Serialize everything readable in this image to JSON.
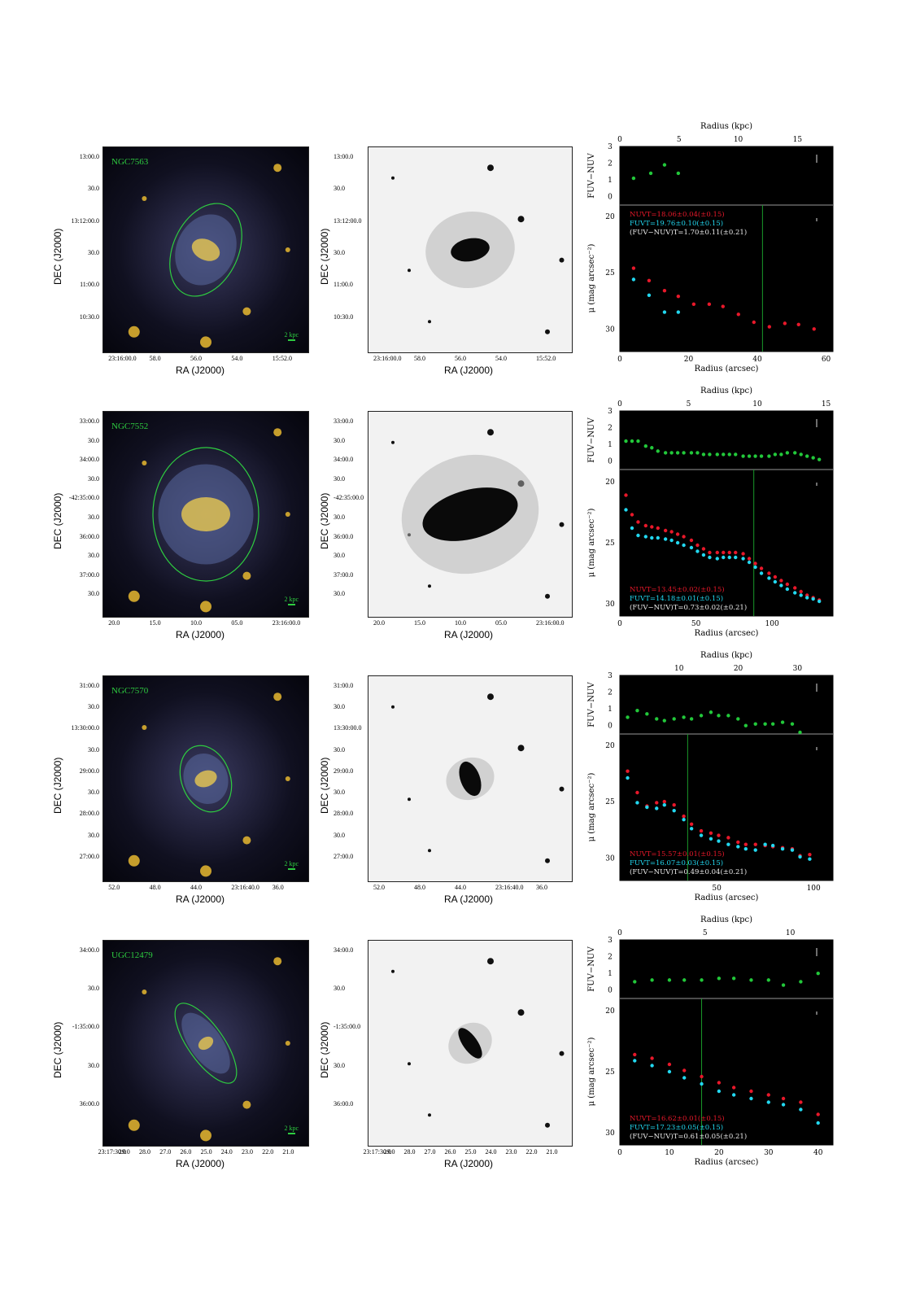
{
  "colors": {
    "nuv": "#e8182a",
    "fuv": "#22d8f0",
    "color": "#22c83a",
    "galname": "#2ecc40"
  },
  "labels": {
    "ra": "RA (J2000)",
    "dec": "DEC (J2000)",
    "radius_kpc": "Radius (kpc)",
    "radius_arcsec": "Radius (arcsec)",
    "fuvnuv": "FUV−NUV",
    "mu": "μ (mag arcsec⁻²)",
    "scale": "2 kpc"
  },
  "galaxies": [
    {
      "name": "NGC7563",
      "color_ra_ticks": [
        "23:16:00.0",
        "58.0",
        "56.0",
        "54.0",
        "15:52.0"
      ],
      "color_dec_ticks": [
        "13:00.0",
        "30.0",
        "13:12:00.0",
        "30.0",
        "11:00.0",
        "10:30.0"
      ],
      "gray_ra_ticks": [
        "23:16:00.0",
        "58.0",
        "56.0",
        "54.0",
        "15:52.0"
      ],
      "gray_dec_ticks": [
        "13:00.0",
        "30.0",
        "13:12:00.0",
        "30.0",
        "11:00.0",
        "10:30.0"
      ],
      "nuv_text": "NUVT=18.06±0.04(±0.15)",
      "fuv_text": "FUVT=19.76±0.10(±0.15)",
      "col_text": "(FUV−NUV)T=1.70±0.11(±0.21)",
      "chart_data": {
        "type": "scatter",
        "top_axis": {
          "label": "Radius (kpc)",
          "ticks": [
            "0",
            "5",
            "10",
            "15"
          ],
          "lim": [
            0,
            18
          ]
        },
        "bottom_axis": {
          "label": "Radius (arcsec)",
          "ticks": [
            "0",
            "20",
            "40",
            "60"
          ],
          "lim": [
            0,
            62
          ]
        },
        "color_axis": {
          "label": "FUV−NUV",
          "ticks": [
            "3",
            "2",
            "1",
            "0"
          ],
          "lim": [
            -0.5,
            3
          ]
        },
        "mu_axis": {
          "label": "μ (mag arcsec⁻²)",
          "ticks": [
            "20",
            "25",
            "30"
          ],
          "lim": [
            32,
            19
          ]
        },
        "series": [
          {
            "name": "FUV−NUV",
            "x": [
              4,
              9,
              13,
              17
            ],
            "y": [
              1.1,
              1.4,
              1.9,
              1.4
            ]
          },
          {
            "name": "NUV",
            "x": [
              4,
              8.5,
              13,
              17,
              21.5,
              26,
              30,
              34.5,
              39,
              43.5,
              48,
              52,
              56.5
            ],
            "y": [
              24.6,
              25.7,
              26.6,
              27.1,
              27.8,
              27.8,
              28.0,
              28.7,
              29.4,
              29.8,
              29.5,
              29.6,
              30.0
            ]
          },
          {
            "name": "FUV",
            "x": [
              4,
              8.5,
              13,
              17
            ],
            "y": [
              25.6,
              27.0,
              28.5,
              28.5
            ]
          }
        ],
        "vline": 41.5
      }
    },
    {
      "name": "NGC7552",
      "color_ra_ticks": [
        "20.0",
        "15.0",
        "10.0",
        "05.0",
        "23:16:00.0"
      ],
      "color_dec_ticks": [
        "33:00.0",
        "30.0",
        "34:00.0",
        "30.0",
        "-42:35:00.0",
        "30.0",
        "36:00.0",
        "30.0",
        "37:00.0",
        "30.0"
      ],
      "gray_ra_ticks": [
        "20.0",
        "15.0",
        "10.0",
        "05.0",
        "23:16:00.0"
      ],
      "gray_dec_ticks": [
        "33:00.0",
        "30.0",
        "34:00.0",
        "30.0",
        "-42:35:00.0",
        "30.0",
        "36:00.0",
        "30.0",
        "37:00.0",
        "30.0"
      ],
      "nuv_text": "NUVT=13.45±0.02(±0.15)",
      "fuv_text": "FUVT=14.18±0.01(±0.15)",
      "col_text": "(FUV−NUV)T=0.73±0.02(±0.21)",
      "chart_data": {
        "type": "scatter",
        "top_axis": {
          "label": "Radius (kpc)",
          "ticks": [
            "0",
            "5",
            "10",
            "15"
          ],
          "lim": [
            0,
            15.5
          ]
        },
        "bottom_axis": {
          "label": "Radius (arcsec)",
          "ticks": [
            "0",
            "50",
            "100"
          ],
          "lim": [
            0,
            140
          ]
        },
        "color_axis": {
          "label": "FUV−NUV",
          "ticks": [
            "3",
            "2",
            "1",
            "0"
          ],
          "lim": [
            -0.5,
            3
          ]
        },
        "mu_axis": {
          "label": "μ (mag arcsec⁻²)",
          "ticks": [
            "20",
            "25",
            "30"
          ],
          "lim": [
            31,
            19
          ]
        },
        "series": [
          {
            "name": "FUV−NUV",
            "x": [
              4,
              8,
              12,
              17,
              21,
              25,
              30,
              34,
              38,
              42,
              47,
              51,
              55,
              59,
              64,
              68,
              72,
              76,
              81,
              85,
              89,
              93,
              98,
              102,
              106,
              110,
              115,
              119,
              123,
              127,
              131
            ],
            "y": [
              1.2,
              1.2,
              1.2,
              0.9,
              0.8,
              0.6,
              0.5,
              0.5,
              0.5,
              0.5,
              0.5,
              0.5,
              0.4,
              0.4,
              0.4,
              0.4,
              0.4,
              0.4,
              0.3,
              0.3,
              0.3,
              0.3,
              0.3,
              0.4,
              0.4,
              0.5,
              0.5,
              0.4,
              0.3,
              0.2,
              0.1
            ]
          },
          {
            "name": "NUV",
            "x": [
              4,
              8,
              12,
              17,
              21,
              25,
              30,
              34,
              38,
              42,
              47,
              51,
              55,
              59,
              64,
              68,
              72,
              76,
              81,
              85,
              89,
              93,
              98,
              102,
              106,
              110,
              115,
              119,
              123,
              127,
              131
            ],
            "y": [
              21.1,
              22.7,
              23.3,
              23.6,
              23.7,
              23.8,
              24.0,
              24.1,
              24.3,
              24.5,
              24.8,
              25.2,
              25.5,
              25.8,
              25.8,
              25.8,
              25.8,
              25.8,
              25.9,
              26.3,
              26.7,
              27.1,
              27.5,
              27.8,
              28.1,
              28.4,
              28.7,
              29.0,
              29.3,
              29.5,
              29.7
            ]
          },
          {
            "name": "FUV",
            "x": [
              4,
              8,
              12,
              17,
              21,
              25,
              30,
              34,
              38,
              42,
              47,
              51,
              55,
              59,
              64,
              68,
              72,
              76,
              81,
              85,
              89,
              93,
              98,
              102,
              106,
              110,
              115,
              119,
              123,
              127,
              131
            ],
            "y": [
              22.3,
              23.8,
              24.4,
              24.5,
              24.6,
              24.6,
              24.7,
              24.8,
              25.0,
              25.2,
              25.4,
              25.7,
              26.0,
              26.2,
              26.3,
              26.2,
              26.2,
              26.2,
              26.3,
              26.6,
              27.0,
              27.5,
              27.9,
              28.2,
              28.5,
              28.8,
              29.1,
              29.3,
              29.5,
              29.6,
              29.8
            ]
          }
        ],
        "vline": 88
      }
    },
    {
      "name": "NGC7570",
      "color_ra_ticks": [
        "52.0",
        "48.0",
        "44.0",
        "23:16:40.0",
        "36.0"
      ],
      "color_dec_ticks": [
        "31:00.0",
        "30.0",
        "13:30:00.0",
        "30.0",
        "29:00.0",
        "30.0",
        "28:00.0",
        "30.0",
        "27:00.0"
      ],
      "gray_ra_ticks": [
        "52.0",
        "48.0",
        "44.0",
        "23:16:40.0",
        "36.0"
      ],
      "gray_dec_ticks": [
        "31:00.0",
        "30.0",
        "13:30:00.0",
        "30.0",
        "29:00.0",
        "30.0",
        "28:00.0",
        "30.0",
        "27:00.0"
      ],
      "nuv_text": "NUVT=15.57±0.01(±0.15)",
      "fuv_text": "FUVT=16.07±0.03(±0.15)",
      "col_text": "(FUV−NUV)T=0.49±0.04(±0.21)",
      "chart_data": {
        "type": "scatter",
        "top_axis": {
          "label": "Radius (kpc)",
          "ticks": [
            "10",
            "20",
            "30"
          ],
          "lim": [
            0,
            36
          ]
        },
        "bottom_axis": {
          "label": "Radius (arcsec)",
          "ticks": [
            "50",
            "100"
          ],
          "lim": [
            0,
            110
          ]
        },
        "color_axis": {
          "label": "FUV−NUV",
          "ticks": [
            "3",
            "2",
            "1",
            "0"
          ],
          "lim": [
            -0.5,
            3
          ]
        },
        "mu_axis": {
          "label": "μ (mag arcsec⁻²)",
          "ticks": [
            "20",
            "25",
            "30"
          ],
          "lim": [
            32,
            19
          ]
        },
        "series": [
          {
            "name": "FUV−NUV",
            "x": [
              4,
              9,
              14,
              19,
              23,
              28,
              33,
              37,
              42,
              47,
              51,
              56,
              61,
              65,
              70,
              75,
              79,
              84,
              89,
              93
            ],
            "y": [
              0.5,
              0.9,
              0.7,
              0.4,
              0.3,
              0.4,
              0.5,
              0.4,
              0.6,
              0.8,
              0.6,
              0.6,
              0.4,
              0.0,
              0.1,
              0.1,
              0.1,
              0.2,
              0.1,
              -0.4
            ]
          },
          {
            "name": "NUV",
            "x": [
              4,
              9,
              14,
              19,
              23,
              28,
              33,
              37,
              42,
              47,
              51,
              56,
              61,
              65,
              70,
              75,
              79,
              84,
              89,
              93,
              98
            ],
            "y": [
              22.3,
              24.2,
              25.4,
              25.1,
              25.0,
              25.3,
              26.3,
              27.0,
              27.6,
              27.8,
              28.0,
              28.2,
              28.6,
              28.8,
              28.8,
              28.9,
              29.0,
              29.1,
              29.2,
              29.8,
              29.7
            ]
          },
          {
            "name": "FUV",
            "x": [
              4,
              9,
              14,
              19,
              23,
              28,
              33,
              37,
              42,
              47,
              51,
              56,
              61,
              65,
              70,
              75,
              79,
              84,
              89,
              93,
              98
            ],
            "y": [
              22.9,
              25.1,
              25.5,
              25.6,
              25.3,
              25.8,
              26.6,
              27.4,
              28.0,
              28.3,
              28.5,
              28.8,
              29.0,
              29.2,
              29.3,
              28.8,
              28.9,
              29.2,
              29.3,
              29.9,
              30.1
            ]
          }
        ],
        "vline": 35
      }
    },
    {
      "name": "UGC12479",
      "color_ra_ticks": [
        "23:17:30.0",
        "29.0",
        "28.0",
        "27.0",
        "26.0",
        "25.0",
        "24.0",
        "23.0",
        "22.0",
        "21.0"
      ],
      "color_dec_ticks": [
        "34:00.0",
        "30.0",
        "-1:35:00.0",
        "30.0",
        "36:00.0"
      ],
      "gray_ra_ticks": [
        "23:17:30.0",
        "29.0",
        "28.0",
        "27.0",
        "26.0",
        "25.0",
        "24.0",
        "23.0",
        "22.0",
        "21.0"
      ],
      "gray_dec_ticks": [
        "34:00.0",
        "30.0",
        "-1:35:00.0",
        "30.0",
        "36:00.0"
      ],
      "nuv_text": "NUVT=16.62±0.01(±0.15)",
      "fuv_text": "FUVT=17.23±0.05(±0.15)",
      "col_text": "(FUV−NUV)T=0.61±0.05(±0.21)",
      "chart_data": {
        "type": "scatter",
        "top_axis": {
          "label": "Radius (kpc)",
          "ticks": [
            "0",
            "5",
            "10"
          ],
          "lim": [
            0,
            12.5
          ]
        },
        "bottom_axis": {
          "label": "Radius (arcsec)",
          "ticks": [
            "0",
            "10",
            "20",
            "30",
            "40"
          ],
          "lim": [
            0,
            43
          ]
        },
        "color_axis": {
          "label": "FUV−NUV",
          "ticks": [
            "3",
            "2",
            "1",
            "0"
          ],
          "lim": [
            -0.5,
            3
          ]
        },
        "mu_axis": {
          "label": "μ (mag arcsec⁻²)",
          "ticks": [
            "20",
            "25",
            "30"
          ],
          "lim": [
            31,
            19
          ]
        },
        "series": [
          {
            "name": "FUV−NUV",
            "x": [
              3,
              6.5,
              10,
              13,
              16.5,
              20,
              23,
              26.5,
              30,
              33,
              36.5,
              40
            ],
            "y": [
              0.5,
              0.6,
              0.6,
              0.6,
              0.6,
              0.7,
              0.7,
              0.6,
              0.6,
              0.3,
              0.5,
              1.0
            ]
          },
          {
            "name": "NUV",
            "x": [
              3,
              6.5,
              10,
              13,
              16.5,
              20,
              23,
              26.5,
              30,
              33,
              36.5,
              40
            ],
            "y": [
              23.6,
              23.9,
              24.4,
              24.9,
              25.4,
              25.9,
              26.3,
              26.6,
              26.9,
              27.2,
              27.5,
              28.5
            ]
          },
          {
            "name": "FUV",
            "x": [
              3,
              6.5,
              10,
              13,
              16.5,
              20,
              23,
              26.5,
              30,
              33,
              36.5,
              40
            ],
            "y": [
              24.1,
              24.5,
              25.0,
              25.5,
              26.0,
              26.6,
              26.9,
              27.2,
              27.5,
              27.7,
              28.1,
              29.2
            ]
          }
        ],
        "vline": 16.5
      }
    }
  ]
}
